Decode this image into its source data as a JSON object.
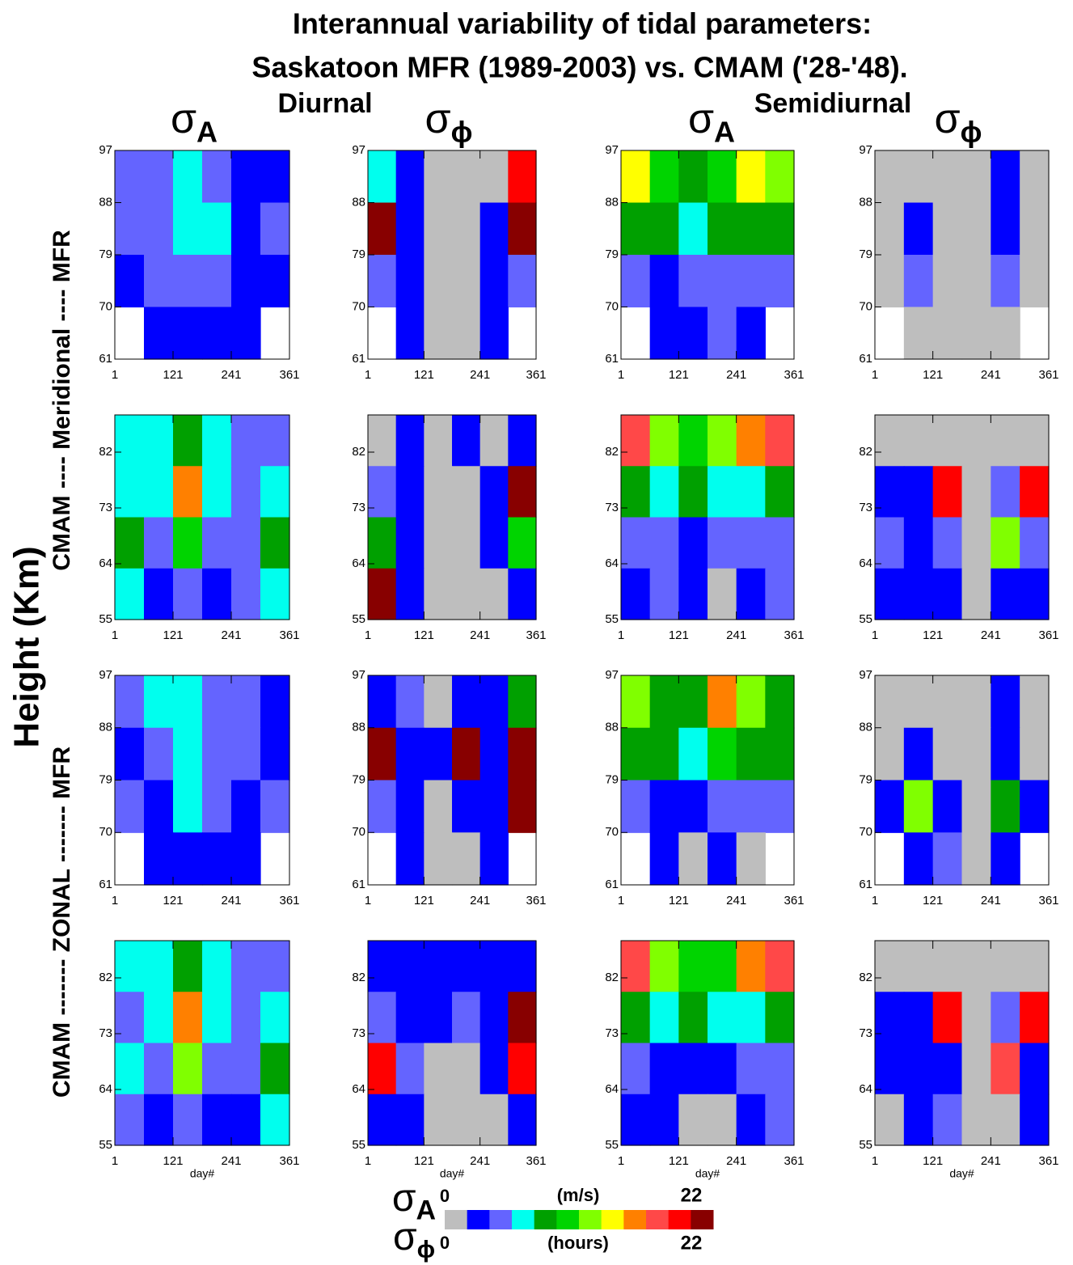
{
  "chart_data": {
    "type": "heatmap",
    "title": "Interannual variability of tidal parameters:",
    "subtitle": "Saskatoon MFR (1989-2003) vs. CMAM ('28-'48).",
    "group_labels": [
      "Diurnal",
      "Semidiurnal"
    ],
    "column_labels": [
      {
        "symbol": "σ",
        "sub": "A"
      },
      {
        "symbol": "σ",
        "sub": "ϕ"
      },
      {
        "symbol": "σ",
        "sub": "A"
      },
      {
        "symbol": "σ",
        "sub": "ϕ"
      }
    ],
    "ylabel": "Height (Km)",
    "row_group_labels": [
      "CMAM ---- Meridional ---- MFR",
      "CMAM ------- ZONAL ------- MFR"
    ],
    "xlabel": "day#",
    "xlim": [
      1,
      361
    ],
    "xticks": [
      1,
      121,
      241,
      361
    ],
    "colorbar": {
      "colors": [
        "#bebebe",
        "#0000ff",
        "#6464ff",
        "#00ffee",
        "#00a000",
        "#00d400",
        "#80ff00",
        "#ffff00",
        "#ff8000",
        "#ff4848",
        "#ff0000",
        "#880000"
      ],
      "min": 0,
      "max": 22,
      "top_unit": "(m/s)",
      "bottom_unit": "(hours)",
      "top_symbol": {
        "symbol": "σ",
        "sub": "A"
      },
      "bottom_symbol": {
        "symbol": "σ",
        "sub": "ϕ"
      }
    },
    "panels": [
      {
        "ylim": [
          61,
          97
        ],
        "yticks": [
          61,
          70,
          79,
          88,
          97
        ],
        "values": [
          [
            5,
            5,
            7,
            5,
            3,
            3
          ],
          [
            5,
            5,
            7,
            7,
            3,
            5
          ],
          [
            3,
            5,
            5,
            5,
            3,
            3
          ],
          [
            null,
            3,
            3,
            3,
            3,
            null
          ]
        ]
      },
      {
        "ylim": [
          61,
          97
        ],
        "yticks": [
          61,
          70,
          79,
          88,
          97
        ],
        "values": [
          [
            7,
            3,
            1,
            1,
            1,
            20
          ],
          [
            22,
            3,
            1,
            1,
            3,
            22
          ],
          [
            5,
            3,
            1,
            1,
            3,
            5
          ],
          [
            null,
            3,
            1,
            1,
            3,
            null
          ]
        ]
      },
      {
        "ylim": [
          61,
          97
        ],
        "yticks": [
          61,
          70,
          79,
          88,
          97
        ],
        "values": [
          [
            14,
            11,
            9,
            11,
            15,
            13
          ],
          [
            9,
            9,
            7,
            9,
            9,
            9
          ],
          [
            5,
            3,
            5,
            5,
            5,
            5
          ],
          [
            null,
            3,
            3,
            5,
            3,
            null
          ]
        ]
      },
      {
        "ylim": [
          61,
          97
        ],
        "yticks": [
          61,
          70,
          79,
          88,
          97
        ],
        "values": [
          [
            1,
            1,
            1,
            1,
            3,
            1
          ],
          [
            1,
            3,
            1,
            1,
            3,
            1
          ],
          [
            1,
            5,
            1,
            1,
            5,
            1
          ],
          [
            null,
            1,
            1,
            1,
            1,
            null
          ]
        ]
      },
      {
        "ylim": [
          55,
          88
        ],
        "yticks": [
          55,
          64,
          73,
          82
        ],
        "values": [
          [
            7,
            7,
            9,
            7,
            5,
            5
          ],
          [
            7,
            7,
            17,
            7,
            5,
            7
          ],
          [
            9,
            5,
            11,
            5,
            5,
            9
          ],
          [
            7,
            3,
            5,
            3,
            5,
            7
          ]
        ]
      },
      {
        "ylim": [
          55,
          88
        ],
        "yticks": [
          55,
          64,
          73,
          82
        ],
        "values": [
          [
            1,
            3,
            1,
            3,
            1,
            3
          ],
          [
            5,
            3,
            1,
            1,
            3,
            22
          ],
          [
            9,
            3,
            1,
            1,
            3,
            11
          ],
          [
            22,
            3,
            1,
            1,
            1,
            3
          ]
        ]
      },
      {
        "ylim": [
          55,
          88
        ],
        "yticks": [
          55,
          64,
          73,
          82
        ],
        "values": [
          [
            19,
            13,
            11,
            13,
            17,
            19
          ],
          [
            9,
            7,
            9,
            7,
            7,
            9
          ],
          [
            5,
            5,
            3,
            5,
            5,
            5
          ],
          [
            3,
            5,
            3,
            1,
            3,
            5
          ]
        ]
      },
      {
        "ylim": [
          55,
          88
        ],
        "yticks": [
          55,
          64,
          73,
          82
        ],
        "values": [
          [
            1,
            1,
            1,
            1,
            1,
            1
          ],
          [
            3,
            3,
            21,
            1,
            5,
            21
          ],
          [
            5,
            3,
            5,
            1,
            13,
            5
          ],
          [
            3,
            3,
            3,
            1,
            3,
            3
          ]
        ]
      },
      {
        "ylim": [
          61,
          97
        ],
        "yticks": [
          61,
          70,
          79,
          88,
          97
        ],
        "values": [
          [
            5,
            7,
            7,
            5,
            5,
            3
          ],
          [
            3,
            5,
            7,
            5,
            5,
            3
          ],
          [
            5,
            3,
            7,
            5,
            3,
            5
          ],
          [
            null,
            3,
            3,
            3,
            3,
            null
          ]
        ]
      },
      {
        "ylim": [
          61,
          97
        ],
        "yticks": [
          61,
          70,
          79,
          88,
          97
        ],
        "values": [
          [
            3,
            5,
            1,
            3,
            3,
            9
          ],
          [
            22,
            3,
            3,
            22,
            3,
            22
          ],
          [
            5,
            3,
            1,
            3,
            3,
            22
          ],
          [
            null,
            3,
            1,
            1,
            3,
            null
          ]
        ]
      },
      {
        "ylim": [
          61,
          97
        ],
        "yticks": [
          61,
          70,
          79,
          88,
          97
        ],
        "values": [
          [
            13,
            9,
            9,
            17,
            13,
            9
          ],
          [
            9,
            9,
            7,
            11,
            9,
            9
          ],
          [
            5,
            3,
            3,
            5,
            5,
            5
          ],
          [
            null,
            3,
            1,
            3,
            1,
            null
          ]
        ]
      },
      {
        "ylim": [
          61,
          97
        ],
        "yticks": [
          61,
          70,
          79,
          88,
          97
        ],
        "values": [
          [
            1,
            1,
            1,
            1,
            3,
            1
          ],
          [
            1,
            3,
            1,
            1,
            3,
            1
          ],
          [
            3,
            13,
            3,
            1,
            9,
            3
          ],
          [
            null,
            3,
            5,
            1,
            3,
            null
          ]
        ]
      },
      {
        "ylim": [
          55,
          88
        ],
        "yticks": [
          55,
          64,
          73,
          82
        ],
        "values": [
          [
            7,
            7,
            9,
            7,
            5,
            5
          ],
          [
            5,
            7,
            17,
            7,
            5,
            7
          ],
          [
            7,
            5,
            13,
            5,
            5,
            9
          ],
          [
            5,
            3,
            5,
            3,
            3,
            7
          ]
        ]
      },
      {
        "ylim": [
          55,
          88
        ],
        "yticks": [
          55,
          64,
          73,
          82
        ],
        "values": [
          [
            3,
            3,
            3,
            3,
            3,
            3
          ],
          [
            5,
            3,
            3,
            5,
            3,
            22
          ],
          [
            21,
            5,
            1,
            1,
            3,
            21
          ],
          [
            3,
            3,
            1,
            1,
            1,
            3
          ]
        ]
      },
      {
        "ylim": [
          55,
          88
        ],
        "yticks": [
          55,
          64,
          73,
          82
        ],
        "values": [
          [
            19,
            13,
            11,
            11,
            17,
            19
          ],
          [
            9,
            7,
            9,
            7,
            7,
            9
          ],
          [
            5,
            3,
            3,
            3,
            5,
            5
          ],
          [
            3,
            3,
            1,
            1,
            3,
            5
          ]
        ]
      },
      {
        "ylim": [
          55,
          88
        ],
        "yticks": [
          55,
          64,
          73,
          82
        ],
        "values": [
          [
            1,
            1,
            1,
            1,
            1,
            1
          ],
          [
            3,
            3,
            21,
            1,
            5,
            21
          ],
          [
            3,
            3,
            3,
            1,
            19,
            3
          ],
          [
            1,
            3,
            5,
            1,
            1,
            3
          ]
        ]
      }
    ]
  }
}
